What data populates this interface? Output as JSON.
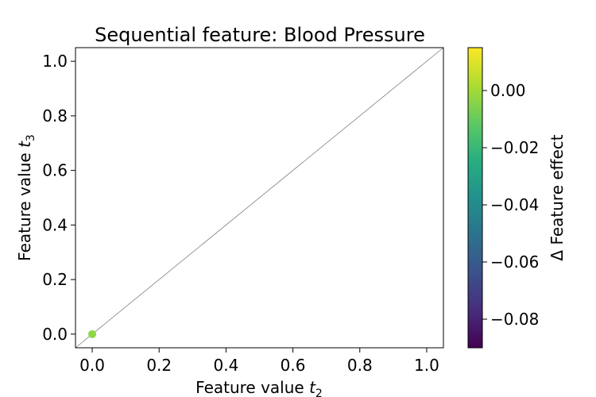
{
  "chart_data": {
    "type": "scatter",
    "title": "Sequential feature: Blood Pressure",
    "xlabel": "Feature value ",
    "xlabel_sub": "t",
    "xlabel_subscript": "2",
    "ylabel": "Feature value ",
    "ylabel_sub": "t",
    "ylabel_subscript": "3",
    "xlim": [
      -0.05,
      1.05
    ],
    "ylim": [
      -0.05,
      1.05
    ],
    "xticks": [
      "0.0",
      "0.2",
      "0.4",
      "0.6",
      "0.8",
      "1.0"
    ],
    "yticks": [
      "0.0",
      "0.2",
      "0.4",
      "0.6",
      "0.8",
      "1.0"
    ],
    "x_tick_values": [
      0.0,
      0.2,
      0.4,
      0.6,
      0.8,
      1.0
    ],
    "y_tick_values": [
      0.0,
      0.2,
      0.4,
      0.6,
      0.8,
      1.0
    ],
    "points": [
      {
        "x": 0.0,
        "y": 0.0,
        "value": 0.0,
        "color": "#8fd744"
      }
    ],
    "reference_line": "y = x",
    "reference_line_color": "#808080",
    "grid": false,
    "colorbar": {
      "label": "Δ Feature effect",
      "colormap": "viridis",
      "range": [
        -0.09,
        0.015
      ],
      "tick_values": [
        0.0,
        -0.02,
        -0.04,
        -0.06,
        -0.08
      ],
      "tick_labels": [
        "0.00",
        "−0.02",
        "−0.04",
        "−0.06",
        "−0.08"
      ]
    }
  }
}
